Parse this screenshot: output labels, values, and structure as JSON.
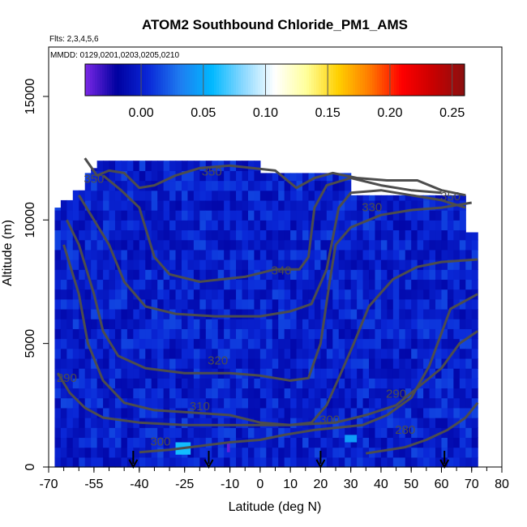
{
  "chart_data": {
    "type": "heatmap",
    "title": "ATOM2 Southbound Chloride_PM1_AMS",
    "flights_label": "Flts: 2,3,4,5,6",
    "mmdd_label": "MMDD: 0129,0201,0203,0205,0210",
    "xlabel": "Latitude (deg N)",
    "ylabel": "Altitude (m)",
    "xlim": [
      -70,
      80
    ],
    "ylim": [
      0,
      17000
    ],
    "x_ticks": [
      -70,
      -55,
      -40,
      -25,
      -10,
      0,
      10,
      20,
      30,
      40,
      50,
      60,
      70,
      80
    ],
    "x_tick_labels": [
      "-70",
      "-55",
      "-40",
      "-25",
      "-10",
      "0",
      "10",
      "20",
      "30",
      "40",
      "50",
      "60",
      "70",
      "80"
    ],
    "y_ticks": [
      0,
      5000,
      10000,
      15000
    ],
    "y_tick_labels": [
      "0",
      "5000",
      "10000",
      "15000"
    ],
    "colorbar": {
      "range": [
        -0.045,
        0.26
      ],
      "ticks": [
        0.0,
        0.05,
        0.1,
        0.15,
        0.2,
        0.25
      ],
      "tick_labels": [
        "0.00",
        "0.05",
        "0.10",
        "0.15",
        "0.20",
        "0.25"
      ],
      "colors": [
        "#7b28e6",
        "#0000a0",
        "#0a28d8",
        "#1e7cf0",
        "#00b8ff",
        "#8ad8ff",
        "#ffffff",
        "#ffff9a",
        "#ffd000",
        "#ff7a00",
        "#ff0000",
        "#c80000",
        "#8a1010"
      ]
    },
    "field_extent_x": [
      -68,
      72
    ],
    "field_extent_y": [
      0,
      12400
    ],
    "typical_value": 0.0,
    "contours": [
      {
        "level": "280",
        "points": [
          [
            35,
            550
          ],
          [
            48,
            800
          ],
          [
            55,
            1100
          ],
          [
            62,
            1500
          ],
          [
            68,
            2000
          ],
          [
            72,
            2600
          ]
        ]
      },
      {
        "level": "290",
        "points": [
          [
            -67,
            3800
          ],
          [
            -63,
            3000
          ],
          [
            -58,
            2400
          ],
          [
            -52,
            2000
          ],
          [
            -40,
            1800
          ],
          [
            -25,
            1700
          ],
          [
            -15,
            1700
          ],
          [
            0,
            1700
          ],
          [
            10,
            1700
          ],
          [
            25,
            1800
          ],
          [
            35,
            2100
          ],
          [
            45,
            2500
          ],
          [
            55,
            3500
          ],
          [
            60,
            4000
          ],
          [
            66,
            5000
          ],
          [
            72,
            5500
          ]
        ]
      },
      {
        "level": "300",
        "points": [
          [
            -40,
            600
          ],
          [
            -30,
            700
          ],
          [
            -20,
            850
          ],
          [
            -10,
            1000
          ],
          [
            0,
            1100
          ],
          [
            8,
            1300
          ],
          [
            18,
            1500
          ],
          [
            26,
            1600
          ],
          [
            34,
            1700
          ],
          [
            42,
            2100
          ],
          [
            50,
            2800
          ],
          [
            56,
            4100
          ],
          [
            63,
            6400
          ],
          [
            72,
            7000
          ]
        ]
      },
      {
        "level": "310",
        "points": [
          [
            -65,
            9000
          ],
          [
            -60,
            7000
          ],
          [
            -57,
            5000
          ],
          [
            -52,
            3500
          ],
          [
            -45,
            2600
          ],
          [
            -35,
            2300
          ],
          [
            -22,
            2200
          ],
          [
            -10,
            2100
          ],
          [
            0,
            1800
          ],
          [
            10,
            1700
          ],
          [
            17,
            1800
          ],
          [
            22,
            2500
          ],
          [
            26,
            3600
          ],
          [
            31,
            5000
          ],
          [
            36,
            6500
          ],
          [
            44,
            7600
          ],
          [
            52,
            8100
          ],
          [
            60,
            8300
          ],
          [
            72,
            8400
          ]
        ]
      },
      {
        "level": "320",
        "points": [
          [
            -64,
            10000
          ],
          [
            -60,
            9000
          ],
          [
            -55,
            7000
          ],
          [
            -52,
            5500
          ],
          [
            -47,
            4500
          ],
          [
            -38,
            4000
          ],
          [
            -25,
            3800
          ],
          [
            -10,
            3800
          ],
          [
            0,
            3700
          ],
          [
            10,
            3500
          ],
          [
            16,
            3600
          ],
          [
            20,
            5000
          ],
          [
            23,
            7500
          ],
          [
            25,
            9000
          ],
          [
            30,
            9700
          ],
          [
            40,
            10200
          ],
          [
            50,
            10400
          ],
          [
            60,
            10500
          ],
          [
            70,
            10700
          ]
        ]
      },
      {
        "level": "330",
        "points": [
          [
            -60,
            11000
          ],
          [
            -55,
            10000
          ],
          [
            -50,
            9000
          ],
          [
            -45,
            7500
          ],
          [
            -38,
            6500
          ],
          [
            -28,
            6200
          ],
          [
            -15,
            6100
          ],
          [
            0,
            6100
          ],
          [
            10,
            6300
          ],
          [
            17,
            6600
          ],
          [
            22,
            8000
          ],
          [
            26,
            10500
          ],
          [
            30,
            11100
          ],
          [
            40,
            11200
          ],
          [
            50,
            11000
          ],
          [
            60,
            10800
          ],
          [
            68,
            10500
          ]
        ]
      },
      {
        "level": "340",
        "points": [
          [
            -52,
            11800
          ],
          [
            -46,
            11200
          ],
          [
            -40,
            10500
          ],
          [
            -35,
            8500
          ],
          [
            -30,
            7800
          ],
          [
            -20,
            7500
          ],
          [
            -5,
            7700
          ],
          [
            5,
            8000
          ],
          [
            13,
            8000
          ],
          [
            16,
            8500
          ],
          [
            18,
            10500
          ],
          [
            22,
            11400
          ],
          [
            30,
            11700
          ],
          [
            40,
            11400
          ],
          [
            50,
            11200
          ],
          [
            60,
            11100
          ]
        ]
      },
      {
        "level": "350",
        "points": [
          [
            -58,
            12500
          ],
          [
            -54,
            11800
          ],
          [
            -50,
            12000
          ],
          [
            -45,
            11900
          ],
          [
            -40,
            11300
          ],
          [
            -35,
            11400
          ],
          [
            -28,
            11800
          ],
          [
            -20,
            12100
          ],
          [
            -10,
            12200
          ],
          [
            5,
            12000
          ],
          [
            12,
            11300
          ],
          [
            18,
            11700
          ],
          [
            24,
            11900
          ],
          [
            32,
            11700
          ],
          [
            42,
            11600
          ],
          [
            52,
            11600
          ],
          [
            60,
            11200
          ],
          [
            68,
            11000
          ]
        ]
      }
    ],
    "contour_labels": [
      {
        "text": "280",
        "x": 48,
        "y": 1350
      },
      {
        "text": "290",
        "x": -64,
        "y": 3450
      },
      {
        "text": "290",
        "x": 45,
        "y": 2800
      },
      {
        "text": "300",
        "x": -33,
        "y": 870
      },
      {
        "text": "300",
        "x": 23,
        "y": 1750
      },
      {
        "text": "310",
        "x": -20,
        "y": 2300
      },
      {
        "text": "320",
        "x": -14,
        "y": 4150
      },
      {
        "text": "330",
        "x": 37,
        "y": 10350
      },
      {
        "text": "340",
        "x": 7,
        "y": 7800
      },
      {
        "text": "350",
        "x": -55,
        "y": 11500
      },
      {
        "text": "350",
        "x": -16,
        "y": 11800
      },
      {
        "text": "350",
        "x": 63,
        "y": 10800
      }
    ],
    "hotspots": [
      {
        "x0": -28,
        "x1": -23,
        "y0": 500,
        "y1": 1000,
        "value": 0.06
      },
      {
        "x0": 28,
        "x1": 32,
        "y0": 1000,
        "y1": 1300,
        "value": 0.045
      },
      {
        "x0": -11,
        "x1": -10,
        "y0": 600,
        "y1": 1000,
        "value": -0.04
      }
    ],
    "arrows_lat": [
      -42,
      -17,
      20,
      61
    ]
  }
}
